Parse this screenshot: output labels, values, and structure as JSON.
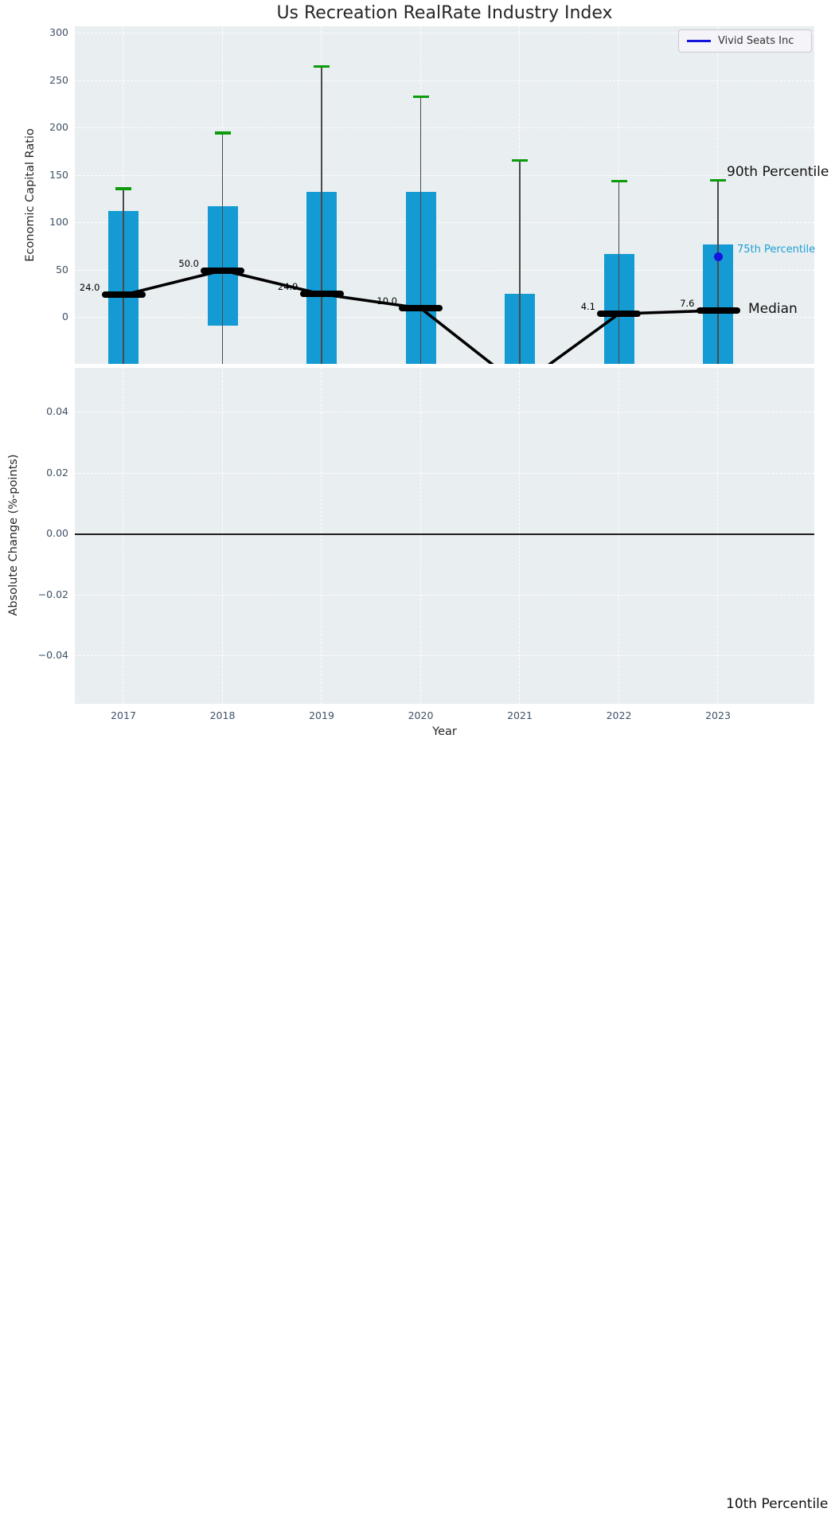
{
  "title": "Us Recreation RealRate Industry Index",
  "legend": {
    "label": "Vivid Seats Inc"
  },
  "colors": {
    "bar": "#149bd3",
    "whisker_cap": "#0b9b0b",
    "vivid_blue": "#1414dd",
    "plot_background": "#e9eef1",
    "gridline": "#ffffff",
    "median": "#000000",
    "tick_text": "#3d5166",
    "p75_annotation_text": "#1d9fd4"
  },
  "top_chart": {
    "ylabel": "Economic Capital Ratio",
    "yticks": [
      "300",
      "250",
      "200",
      "150",
      "100",
      "50",
      "0"
    ],
    "annotations": {
      "p90": "90th Percentile",
      "p75": "75th Percentile",
      "median": "Median",
      "p10": "10th Percentile"
    }
  },
  "bottom_chart": {
    "ylabel": "Absolute Change (%-points)",
    "yticks": [
      "0.04",
      "0.02",
      "0.00",
      "−0.02",
      "−0.04"
    ],
    "xlabel": "Year"
  },
  "chart_data": {
    "type": "bar",
    "title": "Us Recreation RealRate Industry Index",
    "categories": [
      "2017",
      "2018",
      "2019",
      "2020",
      "2021",
      "2022",
      "2023"
    ],
    "xlabel": "Year",
    "ylabel": "Economic Capital Ratio",
    "ylim": [
      -49,
      308
    ],
    "grid": true,
    "legend_position": "upper right",
    "legend_entries": [
      "Vivid Seats Inc"
    ],
    "series": [
      {
        "name": "90th Percentile",
        "role": "whisker_top",
        "values": [
          136,
          195,
          265,
          233,
          166,
          144,
          145
        ]
      },
      {
        "name": "75th Percentile",
        "role": "bar_top",
        "values": [
          113,
          118,
          133,
          133,
          25,
          67,
          77
        ]
      },
      {
        "name": "Median",
        "role": "line",
        "values": [
          24.0,
          50.0,
          24.9,
          10.0,
          -72,
          4.1,
          7.6
        ],
        "labels": [
          "24.0",
          "50.0",
          "24.9",
          "10.0",
          "",
          "4.1",
          "7.6"
        ]
      },
      {
        "name": "Bar bottom",
        "role": "bar_bottom",
        "values": [
          -60,
          -8,
          -60,
          -60,
          -60,
          -60,
          -60
        ],
        "clipped_below_axis": [
          true,
          false,
          true,
          true,
          true,
          true,
          true
        ]
      },
      {
        "name": "Vivid Seats Inc",
        "role": "point",
        "values": [
          null,
          null,
          null,
          null,
          null,
          null,
          64
        ]
      }
    ],
    "secondary_panel": {
      "ylabel": "Absolute Change (%-points)",
      "yticks": [
        0.04,
        0.02,
        0.0,
        -0.02,
        -0.04
      ],
      "ylim": [
        -0.0556,
        0.0547
      ],
      "zero_line": true,
      "data": []
    }
  }
}
